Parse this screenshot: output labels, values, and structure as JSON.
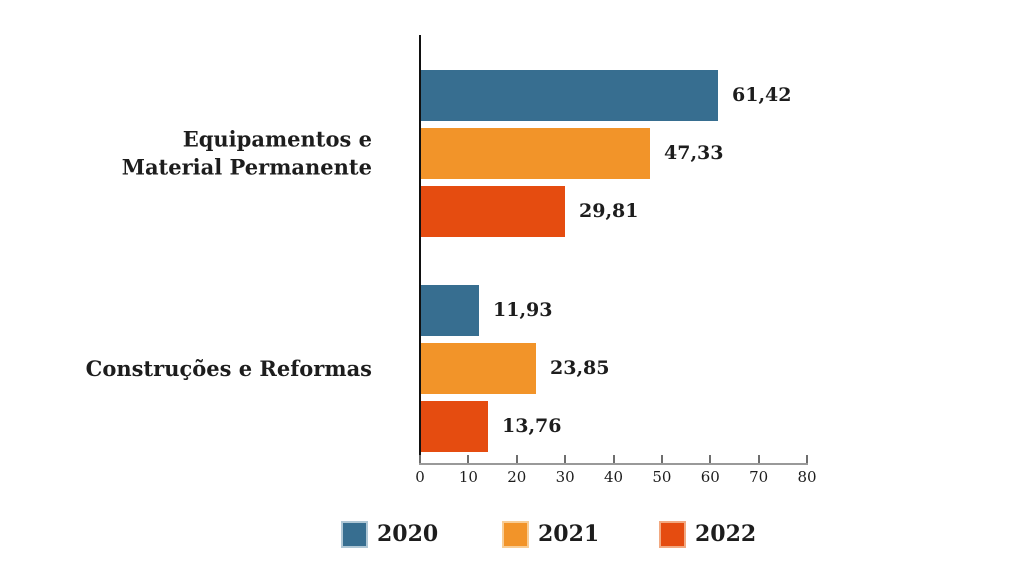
{
  "colors": {
    "background": "#ffffff",
    "text": "#1d1d1d",
    "axis_vertical": "#111111",
    "axis_horizontal": "#999999",
    "tick": "#6e6e6e",
    "series_2020": "#376e90",
    "series_2021": "#f29429",
    "series_2022": "#e54c10"
  },
  "chart_data": {
    "type": "bar",
    "orientation": "horizontal",
    "title": "",
    "xlabel": "",
    "ylabel": "",
    "xlim": [
      0,
      80
    ],
    "xticks": [
      0,
      10,
      20,
      30,
      40,
      50,
      60,
      70,
      80
    ],
    "grid": false,
    "legend_position": "bottom",
    "categories": [
      "Equipamentos e Material Permanente",
      "Construções e Reformas"
    ],
    "categories_lines": [
      [
        "Equipamentos e",
        "Material Permanente"
      ],
      [
        "Construções e Reformas"
      ]
    ],
    "series": [
      {
        "name": "2020",
        "color": "#376e90",
        "swatch_border": "#afc7d5",
        "values": [
          61.42,
          11.93
        ],
        "labels": [
          "61,42",
          "11,93"
        ]
      },
      {
        "name": "2021",
        "color": "#f29429",
        "swatch_border": "#f8cd95",
        "values": [
          47.33,
          23.85
        ],
        "labels": [
          "47,33",
          "23,85"
        ]
      },
      {
        "name": "2022",
        "color": "#e54c10",
        "swatch_border": "#f2a981",
        "values": [
          29.81,
          13.76
        ],
        "labels": [
          "29,81",
          "13,76"
        ]
      }
    ]
  }
}
